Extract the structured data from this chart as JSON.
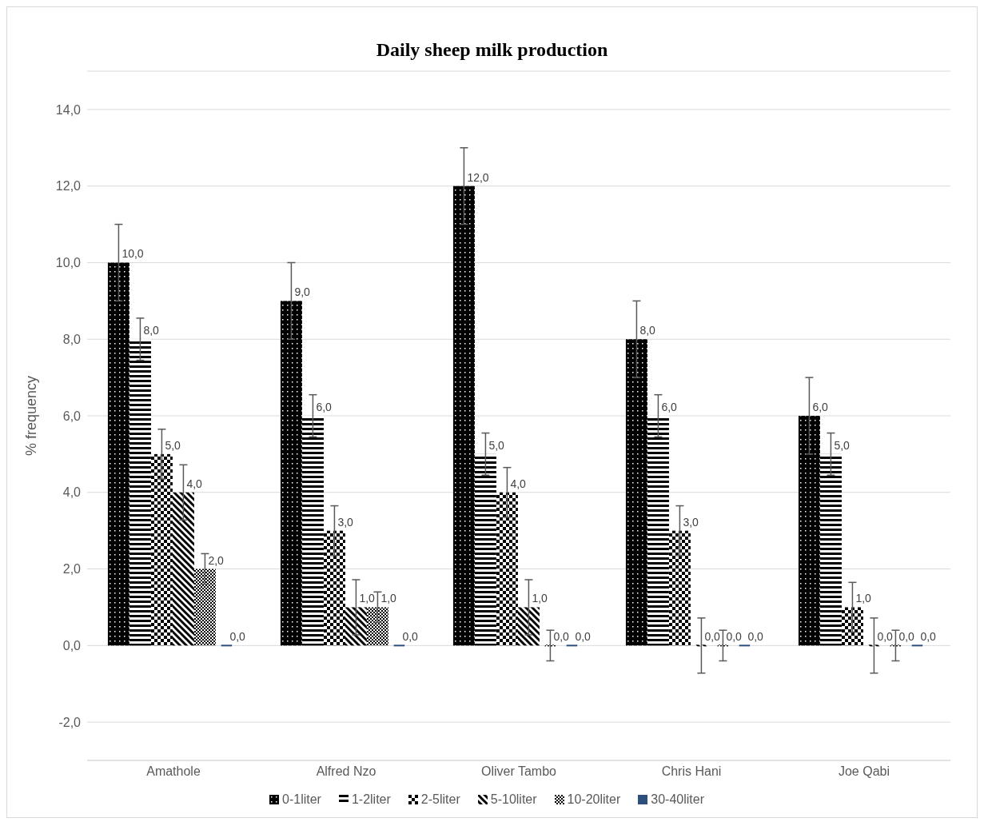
{
  "chart_data": {
    "type": "bar",
    "title": "Daily sheep milk production",
    "ylabel": "% frequency",
    "categories": [
      "Amathole",
      "Alfred Nzo",
      "Oliver Tambo",
      "Chris Hani",
      "Joe Qabi"
    ],
    "series": [
      {
        "name": "0-1liter",
        "color": "#000000",
        "values": [
          10,
          9,
          12,
          8,
          6
        ],
        "errors": [
          1,
          1,
          1,
          1,
          1
        ],
        "value_labels": [
          "10,0",
          "9,0",
          "12,0",
          "8,0",
          "6,0"
        ]
      },
      {
        "name": "1-2liter",
        "color": "#000000",
        "values": [
          8,
          6,
          5,
          6,
          5
        ],
        "errors": [
          0.55,
          0.55,
          0.55,
          0.55,
          0.55
        ],
        "value_labels": [
          "8,0",
          "6,0",
          "5,0",
          "6,0",
          "5,0"
        ]
      },
      {
        "name": "2-5liter",
        "color": "#000000",
        "values": [
          5,
          3,
          4,
          3,
          1
        ],
        "errors": [
          0.65,
          0.65,
          0.65,
          0.65,
          0.65
        ],
        "value_labels": [
          "5,0",
          "3,0",
          "4,0",
          "3,0",
          "1,0"
        ]
      },
      {
        "name": "5-10liter",
        "color": "#000000",
        "values": [
          4,
          1,
          1,
          0,
          0
        ],
        "errors": [
          0.72,
          0.72,
          0.72,
          0.72,
          0.72
        ],
        "value_labels": [
          "4,0",
          "1,0",
          "1,0",
          "0,0",
          "0,0"
        ]
      },
      {
        "name": "10-20liter",
        "color": "#000000",
        "values": [
          2,
          1,
          0,
          0,
          0
        ],
        "errors": [
          0.4,
          0.4,
          0.4,
          0.4,
          0.4
        ],
        "value_labels": [
          "2,0",
          "1,0",
          "0,0",
          "0,0",
          "0,0"
        ]
      },
      {
        "name": "30-40liter",
        "color": "#2e4e7e",
        "values": [
          0,
          0,
          0,
          0,
          0
        ],
        "value_labels": [
          "0,0",
          "0,0",
          "0,0",
          "0,0",
          "0,0"
        ]
      }
    ],
    "ylim": [
      -3,
      15
    ],
    "yticks": [
      {
        "value": -2,
        "label": "-2,0"
      },
      {
        "value": 0,
        "label": "0,0"
      },
      {
        "value": 2,
        "label": "2,0"
      },
      {
        "value": 4,
        "label": "4,0"
      },
      {
        "value": 6,
        "label": "6,0"
      },
      {
        "value": 8,
        "label": "8,0"
      },
      {
        "value": 10,
        "label": "10,0"
      },
      {
        "value": 12,
        "label": "12,0"
      },
      {
        "value": 14,
        "label": "14,0"
      }
    ],
    "grid": "y",
    "legend": "bottom"
  }
}
